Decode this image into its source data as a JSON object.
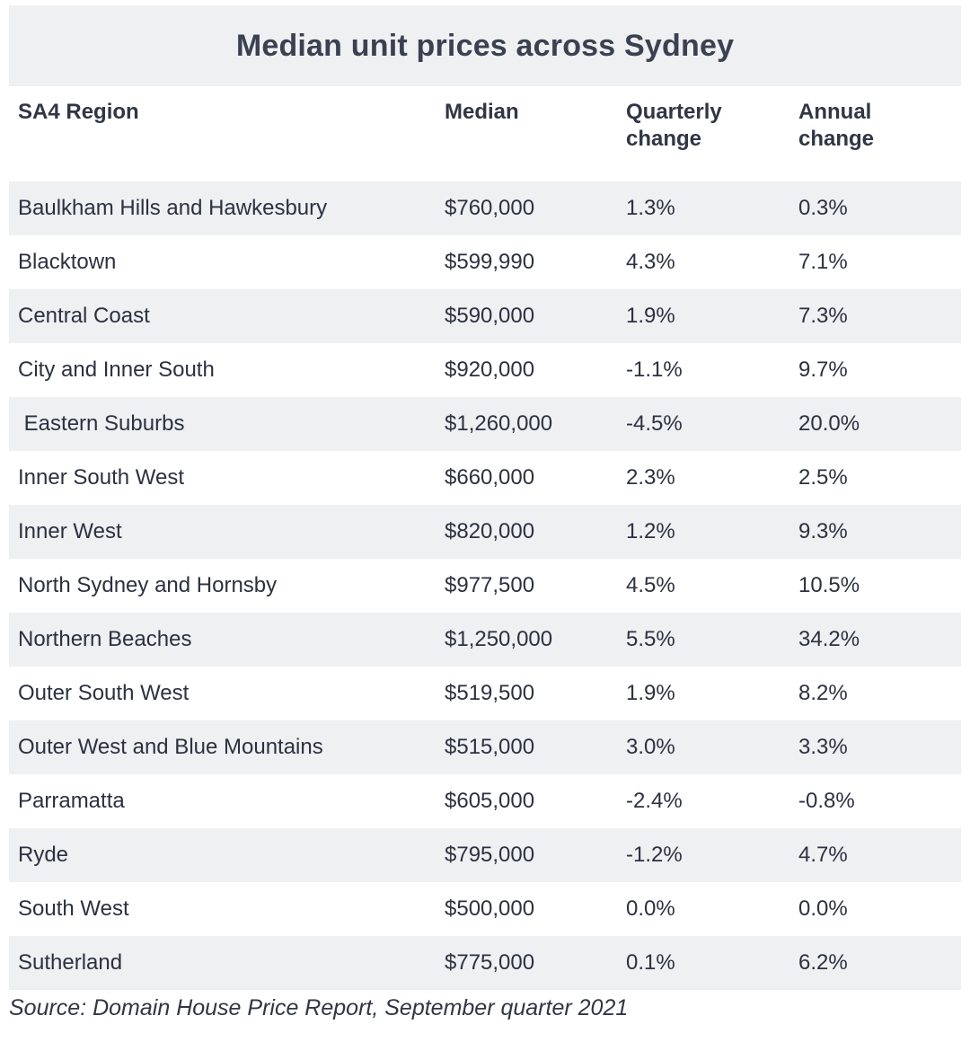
{
  "chart_data": {
    "type": "table",
    "title": "Median unit prices across Sydney",
    "columns": [
      "SA4 Region",
      "Median",
      "Quarterly\nchange",
      "Annual\nchange"
    ],
    "rows": [
      [
        "Baulkham Hills and Hawkesbury",
        "$760,000",
        "1.3%",
        "0.3%"
      ],
      [
        "Blacktown",
        "$599,990",
        "4.3%",
        "7.1%"
      ],
      [
        "Central Coast",
        "$590,000",
        "1.9%",
        "7.3%"
      ],
      [
        "City and Inner South",
        "$920,000",
        "-1.1%",
        "9.7%"
      ],
      [
        " Eastern Suburbs",
        "$1,260,000",
        "-4.5%",
        "20.0%"
      ],
      [
        "Inner South West",
        "$660,000",
        "2.3%",
        "2.5%"
      ],
      [
        "Inner West",
        "$820,000",
        "1.2%",
        "9.3%"
      ],
      [
        "North Sydney and Hornsby",
        "$977,500",
        "4.5%",
        "10.5%"
      ],
      [
        "Northern Beaches",
        "$1,250,000",
        "5.5%",
        "34.2%"
      ],
      [
        "Outer South West",
        "$519,500",
        "1.9%",
        "8.2%"
      ],
      [
        "Outer West and Blue Mountains",
        "$515,000",
        "3.0%",
        "3.3%"
      ],
      [
        "Parramatta",
        "$605,000",
        "-2.4%",
        "-0.8%"
      ],
      [
        "Ryde",
        "$795,000",
        "-1.2%",
        "4.7%"
      ],
      [
        "South West",
        "$500,000",
        "0.0%",
        "0.0%"
      ],
      [
        "Sutherland",
        "$775,000",
        "0.1%",
        "6.2%"
      ]
    ],
    "source": "Source: Domain House Price Report, September quarter 2021"
  }
}
